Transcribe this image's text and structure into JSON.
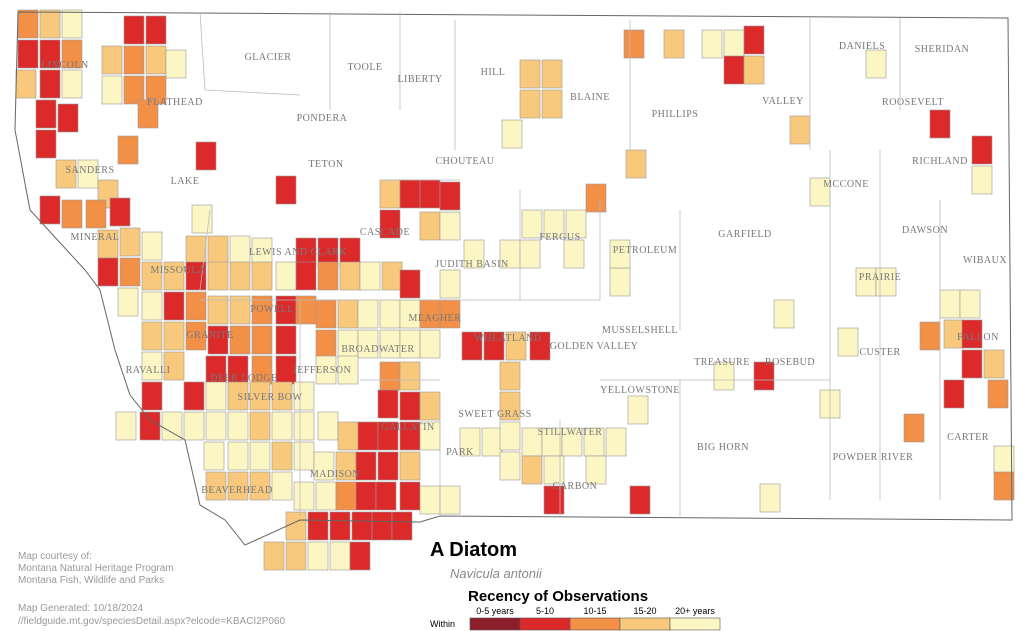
{
  "title": "A Diatom",
  "scientific_name": "Navicula antonii",
  "legend": {
    "title": "Recency of Observations",
    "prefix": "Within",
    "items": [
      {
        "label": "0-5 years",
        "color": "#8b1e2a"
      },
      {
        "label": "5-10",
        "color": "#dc2a2a"
      },
      {
        "label": "10-15",
        "color": "#f39048"
      },
      {
        "label": "15-20",
        "color": "#f8c97c"
      },
      {
        "label": "20+ years",
        "color": "#fcf6c4"
      }
    ]
  },
  "credits": [
    "Map courtesy of:",
    "Montana Natural Heritage Program",
    "Montana Fish, Wildlife and Parks"
  ],
  "generated": [
    "Map Generated: 10/18/2024",
    "//fieldguide.mt.gov/speciesDetail.aspx?elcode=KBACI2P060"
  ],
  "counties": [
    "LINCOLN",
    "FLATHEAD",
    "GLACIER",
    "TOOLE",
    "LIBERTY",
    "HILL",
    "BLAINE",
    "PHILLIPS",
    "VALLEY",
    "DANIELS",
    "SHERIDAN",
    "ROOSEVELT",
    "PONDERA",
    "TETON",
    "CHOUTEAU",
    "LAKE",
    "SANDERS",
    "RICHLAND",
    "MCCONE",
    "MINERAL",
    "CASCADE",
    "FERGUS",
    "PETROLEUM",
    "GARFIELD",
    "DAWSON",
    "WIBAUX",
    "MISSOULA",
    "LEWIS AND CLARK",
    "JUDITH BASIN",
    "PRAIRIE",
    "POWELL",
    "MEAGHER",
    "MUSSELSHELL",
    "GRANITE",
    "BROADWATER",
    "WHEATLAND",
    "GOLDEN VALLEY",
    "CUSTER",
    "FALLON",
    "RAVALLI",
    "DEER LODGE",
    "JEFFERSON",
    "TREASURE",
    "ROSEBUD",
    "SILVER BOW",
    "YELLOWSTONE",
    "SWEET GRASS",
    "STILLWATER",
    "CARTER",
    "GALLATIN",
    "BIG HORN",
    "POWDER RIVER",
    "PARK",
    "MADISON",
    "CARBON",
    "BEAVERHEAD"
  ]
}
